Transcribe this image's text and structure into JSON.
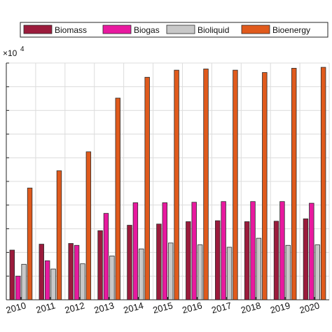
{
  "chart_data": {
    "type": "bar",
    "title": "",
    "xlabel": "",
    "ylabel": "",
    "y_exponent_label": "×10",
    "y_exponent_power": "4",
    "categories": [
      "2010",
      "2011",
      "2012",
      "2013",
      "2014",
      "2015",
      "2016",
      "2017",
      "2018",
      "2019",
      "2020"
    ],
    "ylim": [
      0,
      10
    ],
    "yticks": [
      0,
      1,
      2,
      3,
      4,
      5,
      6,
      7,
      8,
      9,
      10
    ],
    "grid": true,
    "legend_position": "top",
    "series": [
      {
        "name": "Biomass",
        "color": "#9b1b3c",
        "values": [
          2.1,
          2.35,
          2.38,
          2.92,
          3.15,
          3.2,
          3.3,
          3.34,
          3.3,
          3.32,
          3.42
        ]
      },
      {
        "name": "Biogas",
        "color": "#e8199f",
        "values": [
          1.0,
          1.65,
          2.3,
          3.65,
          4.1,
          4.1,
          4.12,
          4.15,
          4.15,
          4.15,
          4.08
        ]
      },
      {
        "name": "Bioliquid",
        "color": "#c8c8c8",
        "values": [
          1.5,
          1.3,
          1.52,
          1.85,
          2.15,
          2.4,
          2.32,
          2.22,
          2.6,
          2.3,
          2.32
        ]
      },
      {
        "name": "Bioenergy",
        "color": "#e05a1c",
        "values": [
          4.72,
          5.45,
          6.25,
          8.52,
          9.4,
          9.7,
          9.75,
          9.7,
          9.6,
          9.78,
          9.82
        ]
      }
    ]
  }
}
